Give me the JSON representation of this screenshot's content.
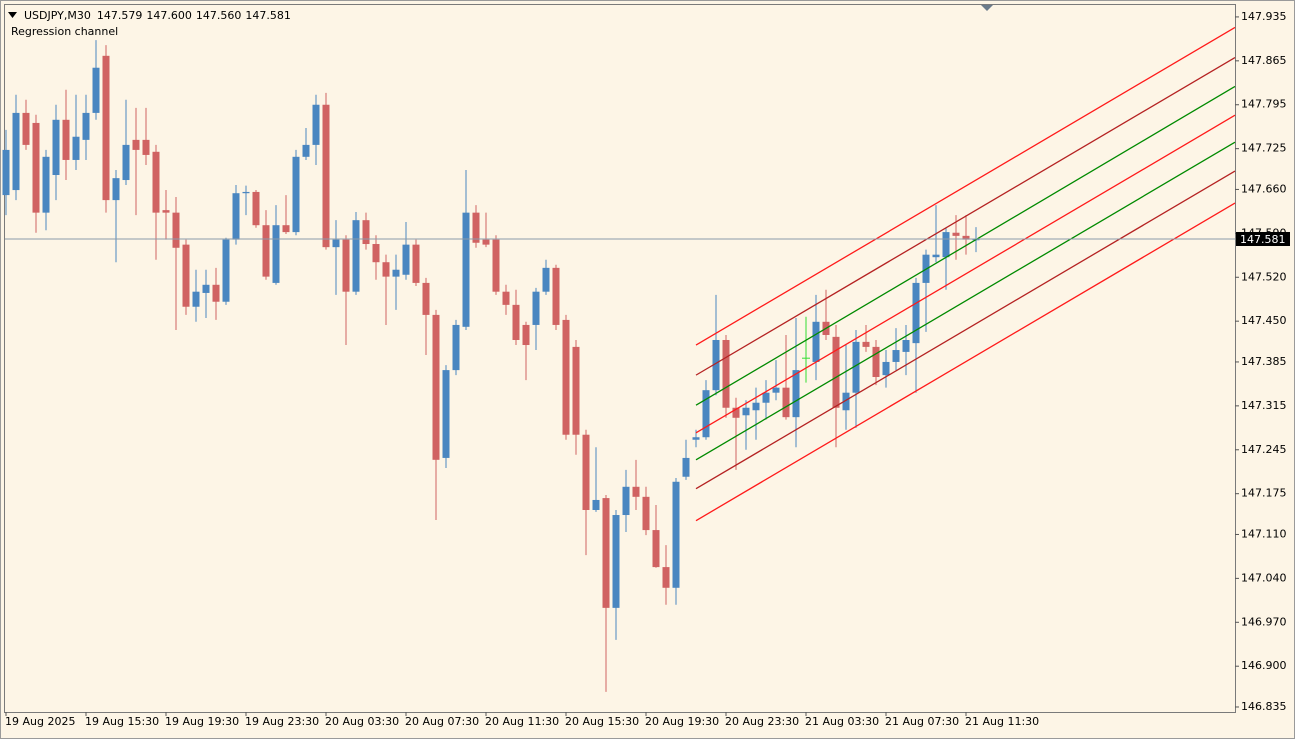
{
  "chart_data": {
    "type": "candlestick",
    "symbol": "USDJPY,M30",
    "header_quote": [
      "147.579",
      "147.600",
      "147.560",
      "147.581"
    ],
    "categories": [
      "19 Aug 2025",
      null,
      null,
      null,
      null,
      null,
      null,
      null,
      "19 Aug 15:30",
      null,
      null,
      null,
      null,
      null,
      null,
      null,
      "19 Aug 19:30",
      null,
      null,
      null,
      null,
      null,
      null,
      null,
      "19 Aug 23:30",
      null,
      null,
      null,
      null,
      null,
      null,
      null,
      "20 Aug 03:30",
      null,
      null,
      null,
      null,
      null,
      null,
      null,
      "20 Aug 07:30",
      null,
      null,
      null,
      null,
      null,
      null,
      null,
      "20 Aug 11:30",
      null,
      null,
      null,
      null,
      null,
      null,
      null,
      "20 Aug 15:30",
      null,
      null,
      null,
      null,
      null,
      null,
      null,
      "20 Aug 19:30",
      null,
      null,
      null,
      null,
      null,
      null,
      null,
      "20 Aug 23:30",
      null,
      null,
      null,
      null,
      null,
      null,
      null,
      "21 Aug 03:30",
      null,
      null,
      null,
      null,
      null,
      null,
      null,
      "21 Aug 07:30",
      null,
      null,
      null,
      null,
      null,
      null,
      null,
      "21 Aug 11:30",
      null
    ],
    "open": [
      147.651,
      147.659,
      147.782,
      147.766,
      147.623,
      147.683,
      147.771,
      147.707,
      147.739,
      147.782,
      147.873,
      147.643,
      147.675,
      147.739,
      147.739,
      147.72,
      147.627,
      147.623,
      147.572,
      147.473,
      147.495,
      147.508,
      147.481,
      147.58,
      147.654,
      147.656,
      147.603,
      147.511,
      147.603,
      147.592,
      147.712,
      147.731,
      147.795,
      147.568,
      147.58,
      147.497,
      147.611,
      147.573,
      147.544,
      147.521,
      147.524,
      147.572,
      147.511,
      147.46,
      147.232,
      147.372,
      147.441,
      147.623,
      147.58,
      147.58,
      147.497,
      147.476,
      147.444,
      147.444,
      147.497,
      147.535,
      147.452,
      147.409,
      147.269,
      147.149,
      147.168,
      146.993,
      147.141,
      147.186,
      147.17,
      147.117,
      147.058,
      147.025,
      147.202,
      147.261,
      147.265,
      147.34,
      147.42,
      147.312,
      147.3,
      147.308,
      147.32,
      147.336,
      147.344,
      147.297,
      147.391,
      147.385,
      147.449,
      147.425,
      147.308,
      147.336,
      147.417,
      147.409,
      147.364,
      147.385,
      147.401,
      147.415,
      147.511,
      147.552,
      147.552,
      147.591,
      147.586,
      147.579
    ],
    "high": [
      147.755,
      147.811,
      147.803,
      147.779,
      147.723,
      147.795,
      147.819,
      147.811,
      147.811,
      147.898,
      147.89,
      147.691,
      147.803,
      147.79,
      147.79,
      147.731,
      147.659,
      147.648,
      147.58,
      147.532,
      147.532,
      147.535,
      147.583,
      147.667,
      147.666,
      147.659,
      147.627,
      147.635,
      147.651,
      147.723,
      147.758,
      147.811,
      147.814,
      147.611,
      147.587,
      147.624,
      147.623,
      147.587,
      147.556,
      147.556,
      147.608,
      147.58,
      147.519,
      147.468,
      147.38,
      147.452,
      147.691,
      147.635,
      147.623,
      147.587,
      147.508,
      147.5,
      147.449,
      147.503,
      147.548,
      147.54,
      147.46,
      147.42,
      147.277,
      147.249,
      147.173,
      147.149,
      147.213,
      147.229,
      147.186,
      147.157,
      147.093,
      147.2,
      147.261,
      147.277,
      147.356,
      147.492,
      147.428,
      147.328,
      147.324,
      147.344,
      147.356,
      147.388,
      147.428,
      147.455,
      147.457,
      147.492,
      147.5,
      147.444,
      147.412,
      147.436,
      147.444,
      147.42,
      147.404,
      147.439,
      147.444,
      147.519,
      147.564,
      147.635,
      147.599,
      147.619,
      147.619,
      147.6
    ],
    "low": [
      147.619,
      147.643,
      147.723,
      147.591,
      147.595,
      147.643,
      147.675,
      147.691,
      147.707,
      147.771,
      147.623,
      147.544,
      147.667,
      147.619,
      147.699,
      147.548,
      147.58,
      147.436,
      147.46,
      147.449,
      147.455,
      147.452,
      147.476,
      147.572,
      147.619,
      147.599,
      147.516,
      147.508,
      147.589,
      147.587,
      147.707,
      147.699,
      147.564,
      147.492,
      147.412,
      147.492,
      147.564,
      147.516,
      147.444,
      147.468,
      147.516,
      147.506,
      147.396,
      147.133,
      147.216,
      147.364,
      147.436,
      147.567,
      147.568,
      147.492,
      147.46,
      147.412,
      147.356,
      147.404,
      147.492,
      147.436,
      147.261,
      147.237,
      147.077,
      147.146,
      146.859,
      146.942,
      147.114,
      147.149,
      147.109,
      147.057,
      146.998,
      146.998,
      147.197,
      147.249,
      147.261,
      147.332,
      147.296,
      147.213,
      147.245,
      147.261,
      147.293,
      147.324,
      147.293,
      147.249,
      147.352,
      147.356,
      147.42,
      147.249,
      147.277,
      147.28,
      147.401,
      147.348,
      147.344,
      147.372,
      147.364,
      147.336,
      147.433,
      147.544,
      147.5,
      147.548,
      147.556,
      147.56
    ],
    "close": [
      147.723,
      147.782,
      147.731,
      147.623,
      147.712,
      147.771,
      147.707,
      147.744,
      147.782,
      147.854,
      147.643,
      147.678,
      147.731,
      147.723,
      147.715,
      147.623,
      147.623,
      147.567,
      147.473,
      147.497,
      147.508,
      147.481,
      147.58,
      147.654,
      147.656,
      147.603,
      147.521,
      147.603,
      147.592,
      147.712,
      147.731,
      147.795,
      147.568,
      147.58,
      147.497,
      147.611,
      147.573,
      147.544,
      147.521,
      147.532,
      147.572,
      147.511,
      147.46,
      147.229,
      147.372,
      147.444,
      147.623,
      147.575,
      147.572,
      147.497,
      147.476,
      147.42,
      147.412,
      147.497,
      147.535,
      147.444,
      147.269,
      147.269,
      147.149,
      147.165,
      146.993,
      147.141,
      147.186,
      147.17,
      147.117,
      147.058,
      147.025,
      147.194,
      147.232,
      147.265,
      147.34,
      147.42,
      147.312,
      147.296,
      147.312,
      147.32,
      147.336,
      147.344,
      147.297,
      147.372,
      147.391,
      147.449,
      147.428,
      147.312,
      147.336,
      147.417,
      147.409,
      147.361,
      147.385,
      147.404,
      147.42,
      147.511,
      147.556,
      147.556,
      147.592,
      147.586,
      147.58,
      147.581
    ],
    "bull_color": "#4a86c0",
    "bear_color": "#d06262",
    "doji_color": "#33dd33",
    "channel": {
      "name": "Regression channel",
      "start": 69,
      "end": 97,
      "lines": [
        {
          "color": "#ff1a1a",
          "values": [
            147.412,
            147.675
          ]
        },
        {
          "color": "#b52222",
          "values": [
            147.364,
            147.627
          ]
        },
        {
          "color": "#008a00",
          "values": [
            147.316,
            147.58
          ]
        },
        {
          "color": "#ff1a1a",
          "values": [
            147.272,
            147.535
          ]
        },
        {
          "color": "#008a00",
          "values": [
            147.229,
            147.492
          ]
        },
        {
          "color": "#b52222",
          "values": [
            147.183,
            147.446
          ]
        },
        {
          "color": "#ff1a1a",
          "values": [
            147.132,
            147.395
          ]
        }
      ]
    },
    "ylim": [
      146.827,
      147.954
    ],
    "yticks": [
      147.935,
      147.865,
      147.795,
      147.725,
      {
        "value": 147.66,
        "label": "147.660"
      },
      {
        "value": 147.59,
        "label": "147.590"
      },
      {
        "value": 147.52,
        "label": "147.520"
      },
      {
        "value": 147.45,
        "label": "147.450"
      },
      147.385,
      147.315,
      147.245,
      147.175,
      {
        "value": 147.11,
        "label": "147.110"
      },
      {
        "value": 147.04,
        "label": "147.040"
      },
      {
        "value": 146.97,
        "label": "146.970"
      },
      {
        "value": 146.9,
        "label": "146.900"
      },
      146.835
    ],
    "grid": false
  }
}
